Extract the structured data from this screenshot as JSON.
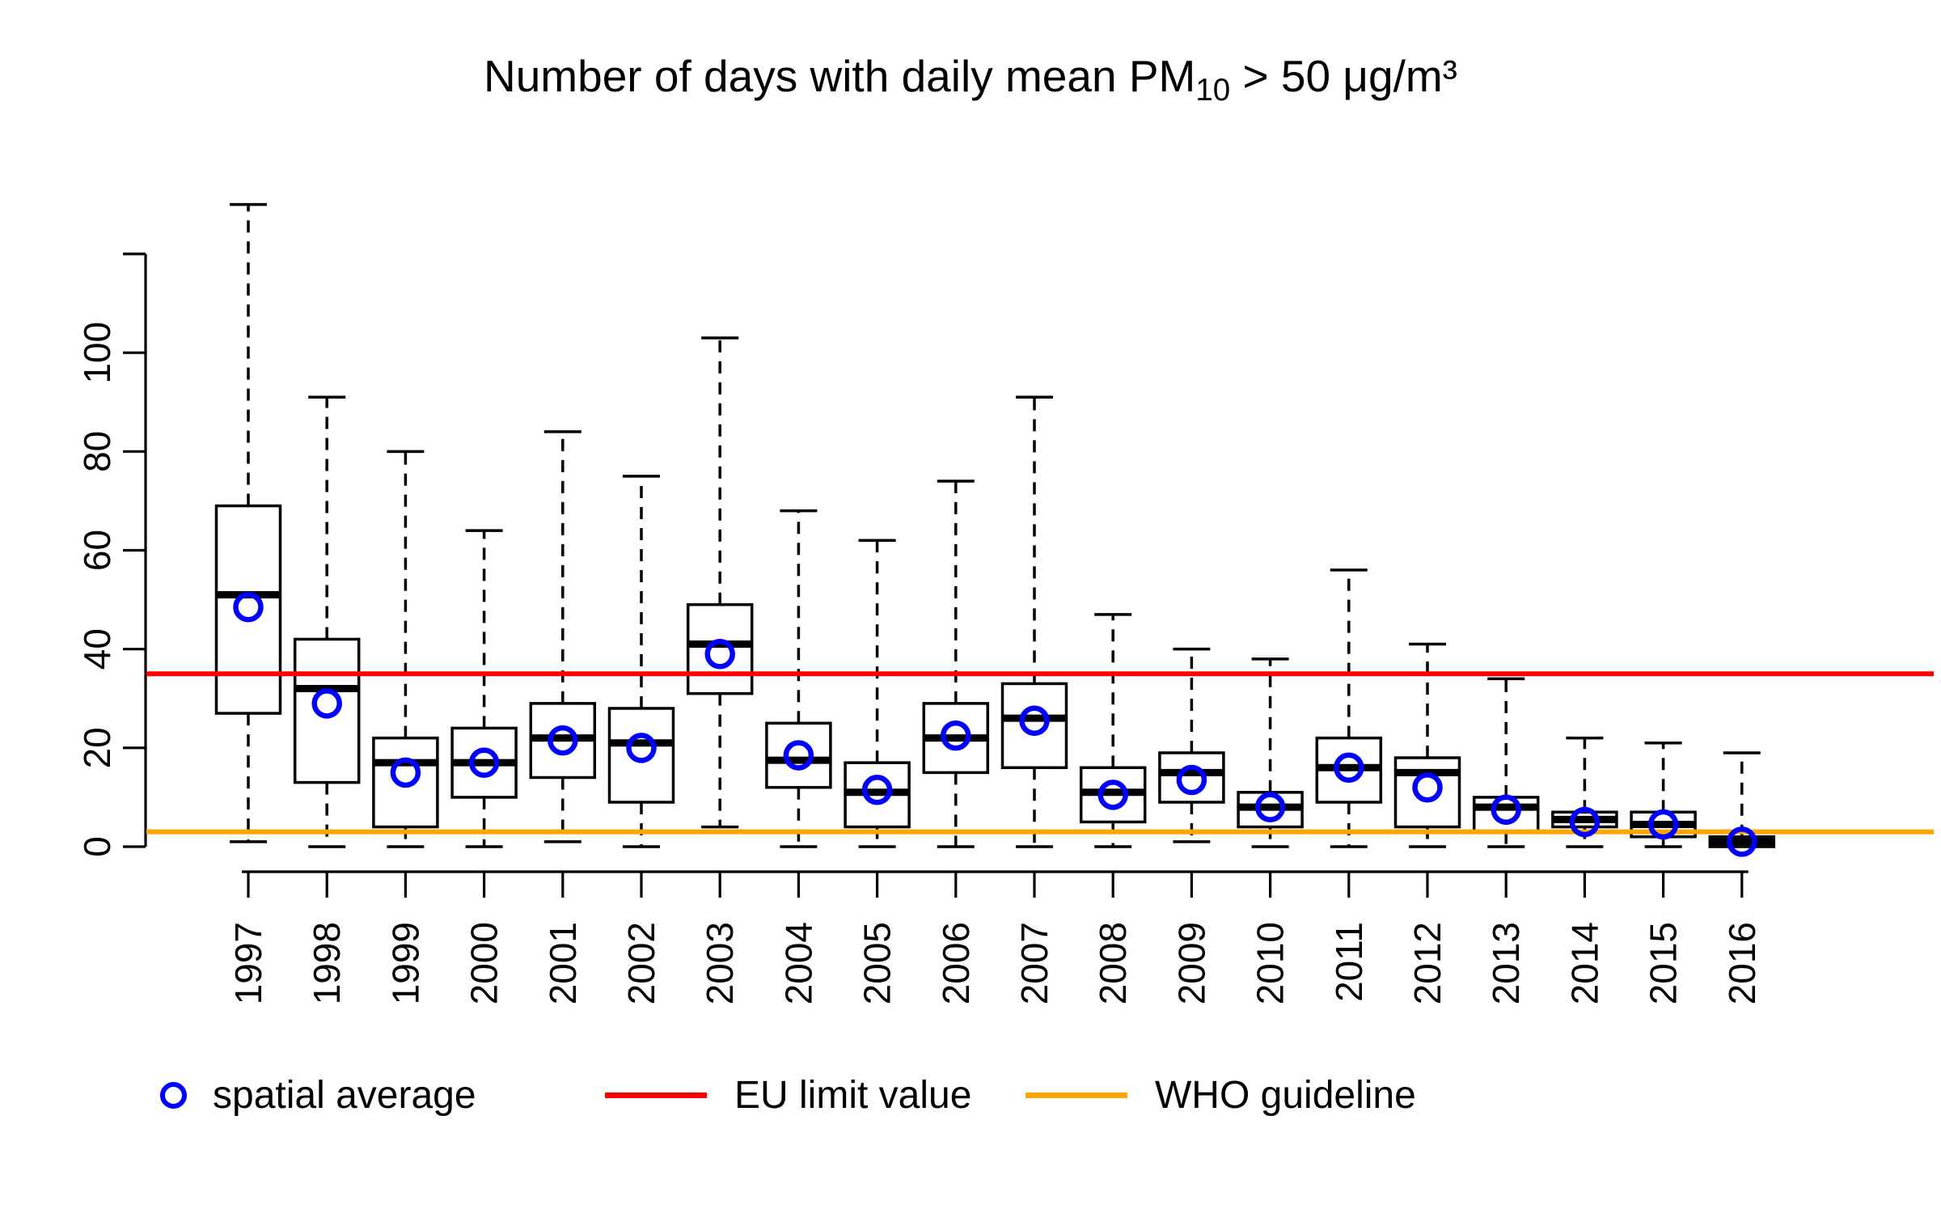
{
  "chart_data": {
    "type": "boxplot",
    "title": {
      "prefix": "Number of days with daily mean PM",
      "sub": "10",
      "suffix": " > 50 μg/m³"
    },
    "y_axis": {
      "ticks": [
        0,
        20,
        40,
        60,
        80,
        100
      ],
      "axis_end": 120,
      "range": [
        0,
        130
      ],
      "grid": false
    },
    "x_axis": {
      "categories": [
        "1997",
        "1998",
        "1999",
        "2000",
        "2001",
        "2002",
        "2003",
        "2004",
        "2005",
        "2006",
        "2007",
        "2008",
        "2009",
        "2010",
        "2011",
        "2012",
        "2013",
        "2014",
        "2015",
        "2016"
      ]
    },
    "series": [
      {
        "year": "1997",
        "min": 1,
        "q1": 27,
        "median": 51,
        "q3": 69,
        "max": 130,
        "mean": 48.5
      },
      {
        "year": "1998",
        "min": 0,
        "q1": 13,
        "median": 32,
        "q3": 42,
        "max": 91,
        "mean": 29
      },
      {
        "year": "1999",
        "min": 0,
        "q1": 4,
        "median": 17,
        "q3": 22,
        "max": 80,
        "mean": 15
      },
      {
        "year": "2000",
        "min": 0,
        "q1": 10,
        "median": 17,
        "q3": 24,
        "max": 64,
        "mean": 17
      },
      {
        "year": "2001",
        "min": 1,
        "q1": 14,
        "median": 22,
        "q3": 29,
        "max": 84,
        "mean": 21.5
      },
      {
        "year": "2002",
        "min": 0,
        "q1": 9,
        "median": 21,
        "q3": 28,
        "max": 75,
        "mean": 20
      },
      {
        "year": "2003",
        "min": 4,
        "q1": 31,
        "median": 41,
        "q3": 49,
        "max": 103,
        "mean": 39
      },
      {
        "year": "2004",
        "min": 0,
        "q1": 12,
        "median": 17.5,
        "q3": 25,
        "max": 68,
        "mean": 18.5
      },
      {
        "year": "2005",
        "min": 0,
        "q1": 4,
        "median": 11,
        "q3": 17,
        "max": 62,
        "mean": 11.5
      },
      {
        "year": "2006",
        "min": 0,
        "q1": 15,
        "median": 22,
        "q3": 29,
        "max": 74,
        "mean": 22.5
      },
      {
        "year": "2007",
        "min": 0,
        "q1": 16,
        "median": 26,
        "q3": 33,
        "max": 91,
        "mean": 25.5
      },
      {
        "year": "2008",
        "min": 0,
        "q1": 5,
        "median": 11,
        "q3": 16,
        "max": 47,
        "mean": 10.5
      },
      {
        "year": "2009",
        "min": 1,
        "q1": 9,
        "median": 15,
        "q3": 19,
        "max": 40,
        "mean": 13.5
      },
      {
        "year": "2010",
        "min": 0,
        "q1": 4,
        "median": 8,
        "q3": 11,
        "max": 38,
        "mean": 8
      },
      {
        "year": "2011",
        "min": 0,
        "q1": 9,
        "median": 16,
        "q3": 22,
        "max": 56,
        "mean": 16
      },
      {
        "year": "2012",
        "min": 0,
        "q1": 4,
        "median": 15,
        "q3": 18,
        "max": 41,
        "mean": 12
      },
      {
        "year": "2013",
        "min": 0,
        "q1": 3,
        "median": 8,
        "q3": 10,
        "max": 34,
        "mean": 7.5
      },
      {
        "year": "2014",
        "min": 0,
        "q1": 4,
        "median": 5.5,
        "q3": 7,
        "max": 22,
        "mean": 5
      },
      {
        "year": "2015",
        "min": 0,
        "q1": 2,
        "median": 4.5,
        "q3": 7,
        "max": 21,
        "mean": 4.5
      },
      {
        "year": "2016",
        "min": 0,
        "q1": 0,
        "median": 1,
        "q3": 2,
        "max": 19,
        "mean": 1
      }
    ],
    "reference_lines": [
      {
        "id": "eu-limit",
        "label": "EU limit value",
        "value": 35,
        "color": "#FF0000"
      },
      {
        "id": "who-guideline",
        "label": "WHO guideline",
        "value": 3,
        "color": "#FFA500"
      }
    ],
    "legend": {
      "items": [
        {
          "id": "spatial-average",
          "label": "spatial average",
          "swatch": "circle",
          "color": "#0000FF"
        },
        {
          "id": "eu-limit",
          "label": "EU limit value",
          "swatch": "line",
          "color": "#FF0000"
        },
        {
          "id": "who-guideline",
          "label": "WHO guideline",
          "swatch": "line",
          "color": "#FFA500"
        }
      ]
    },
    "colors": {
      "box_stroke": "#000000",
      "box_fill": "#FFFFFF",
      "median": "#000000",
      "whisker": "#000000",
      "mean_point": "#0000FF",
      "eu_limit_line": "#FF0000",
      "who_guideline_line": "#FFA500",
      "axis": "#000000",
      "background": "#FFFFFF"
    }
  }
}
